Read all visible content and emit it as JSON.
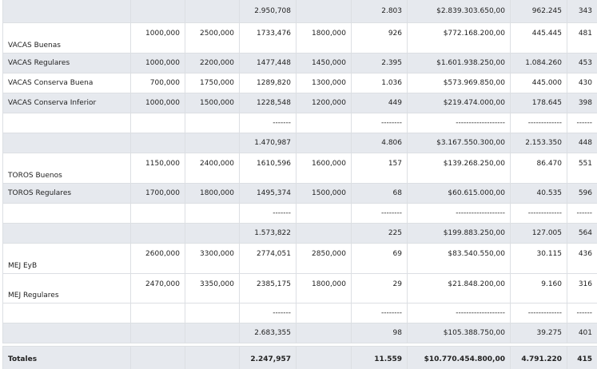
{
  "rows": [
    {
      "type": "subtotal",
      "cells": [
        "",
        "",
        "",
        "2.950,708",
        "",
        "2.803",
        "$2.839.303.650,00",
        "962.245",
        "343"
      ]
    },
    {
      "type": "item",
      "cells": [
        "VACAS Buenas",
        "1000,000",
        "2500,000",
        "1733,476",
        "1800,000",
        "926",
        "$772.168.200,00",
        "445.445",
        "481"
      ]
    },
    {
      "type": "item",
      "cells": [
        "VACAS Regulares",
        "1000,000",
        "2200,000",
        "1477,448",
        "1450,000",
        "2.395",
        "$1.601.938.250,00",
        "1.084.260",
        "453"
      ]
    },
    {
      "type": "item",
      "cells": [
        "VACAS Conserva Buena",
        "700,000",
        "1750,000",
        "1289,820",
        "1300,000",
        "1.036",
        "$573.969.850,00",
        "445.000",
        "430"
      ]
    },
    {
      "type": "item",
      "cells": [
        "VACAS Conserva Inferior",
        "1000,000",
        "1500,000",
        "1228,548",
        "1200,000",
        "449",
        "$219.474.000,00",
        "178.645",
        "398"
      ]
    },
    {
      "type": "dash",
      "cells": [
        "",
        "",
        "",
        "-------",
        "",
        "--------",
        "-------------------",
        "-------------",
        "------"
      ]
    },
    {
      "type": "subtotal",
      "cells": [
        "",
        "",
        "",
        "1.470,987",
        "",
        "4.806",
        "$3.167.550.300,00",
        "2.153.350",
        "448"
      ]
    },
    {
      "type": "item",
      "cells": [
        "TOROS Buenos",
        "1150,000",
        "2400,000",
        "1610,596",
        "1600,000",
        "157",
        "$139.268.250,00",
        "86.470",
        "551"
      ]
    },
    {
      "type": "item",
      "cells": [
        "TOROS Regulares",
        "1700,000",
        "1800,000",
        "1495,374",
        "1500,000",
        "68",
        "$60.615.000,00",
        "40.535",
        "596"
      ]
    },
    {
      "type": "dash",
      "cells": [
        "",
        "",
        "",
        "-------",
        "",
        "--------",
        "-------------------",
        "-------------",
        "------"
      ]
    },
    {
      "type": "subtotal",
      "cells": [
        "",
        "",
        "",
        "1.573,822",
        "",
        "225",
        "$199.883.250,00",
        "127.005",
        "564"
      ]
    },
    {
      "type": "item",
      "cells": [
        "MEJ EyB",
        "2600,000",
        "3300,000",
        "2774,051",
        "2850,000",
        "69",
        "$83.540.550,00",
        "30.115",
        "436"
      ]
    },
    {
      "type": "item",
      "cells": [
        "MEJ Regulares",
        "2470,000",
        "3350,000",
        "2385,175",
        "1800,000",
        "29",
        "$21.848.200,00",
        "9.160",
        "316"
      ]
    },
    {
      "type": "dash",
      "cells": [
        "",
        "",
        "",
        "-------",
        "",
        "--------",
        "-------------------",
        "-------------",
        "------"
      ]
    },
    {
      "type": "subtotal",
      "cells": [
        "",
        "",
        "",
        "2.683,355",
        "",
        "98",
        "$105.388.750,00",
        "39.275",
        "401"
      ]
    },
    {
      "type": "total",
      "cells": [
        "Totales",
        "",
        "",
        "2.247,957",
        "",
        "11.559",
        "$10.770.454.800,00",
        "4.791.220",
        "415"
      ]
    }
  ]
}
